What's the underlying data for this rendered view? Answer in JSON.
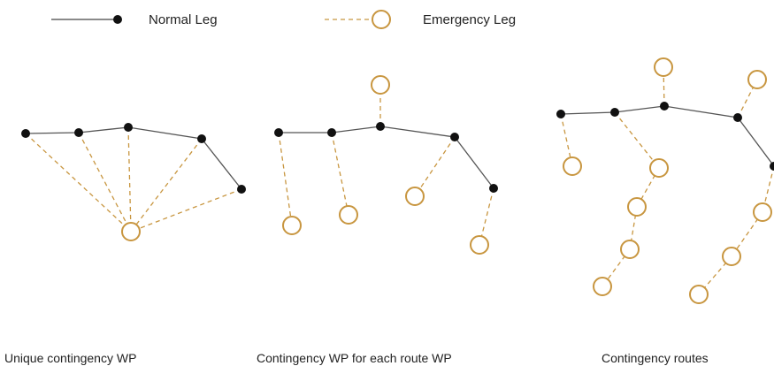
{
  "legend": {
    "normal_label": "Normal Leg",
    "emergency_label": "Emergency Leg"
  },
  "captions": {
    "unique": "Unique contingency WP",
    "each": "Contingency WP for each route WP",
    "routes": "Contingency routes"
  },
  "colors": {
    "normal": "#111111",
    "emergency": "#c89640",
    "normal_line": "#555555"
  }
}
